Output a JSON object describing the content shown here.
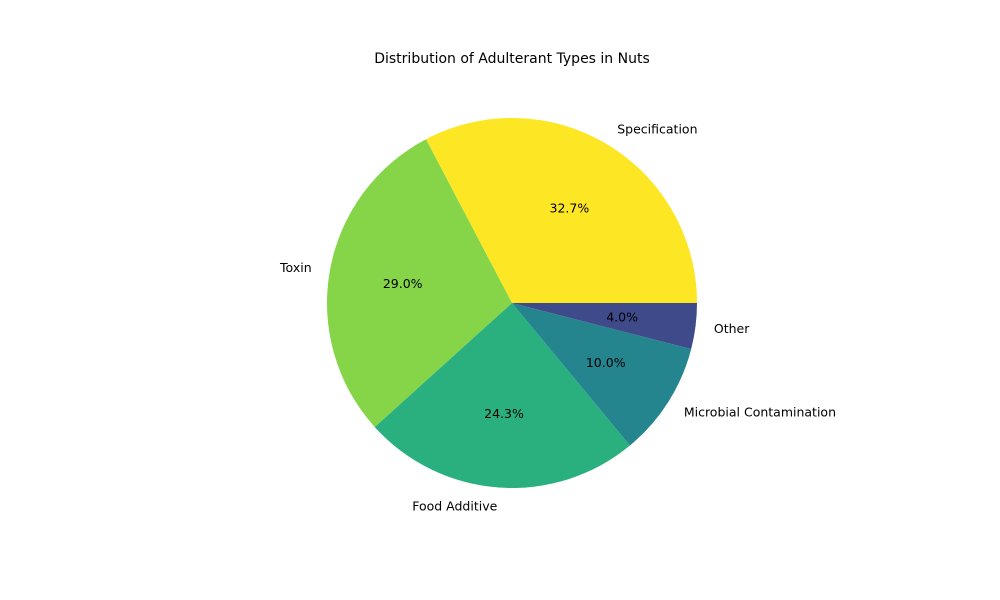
{
  "chart_data": {
    "type": "pie",
    "title": "Distribution of Adulterant Types in Nuts",
    "start_angle_deg": 0,
    "direction": "counterclockwise",
    "legend": "none",
    "slices": [
      {
        "label": "Specification",
        "value": 32.7,
        "pct_label": "32.7%",
        "color": "#fde725"
      },
      {
        "label": "Toxin",
        "value": 29.0,
        "pct_label": "29.0%",
        "color": "#86d549"
      },
      {
        "label": "Food Additive",
        "value": 24.3,
        "pct_label": "24.3%",
        "color": "#2ab07f"
      },
      {
        "label": "Microbial Contamination",
        "value": 10.0,
        "pct_label": "10.0%",
        "color": "#25858e"
      },
      {
        "label": "Other",
        "value": 4.0,
        "pct_label": "4.0%",
        "color": "#3e4a89"
      }
    ]
  }
}
